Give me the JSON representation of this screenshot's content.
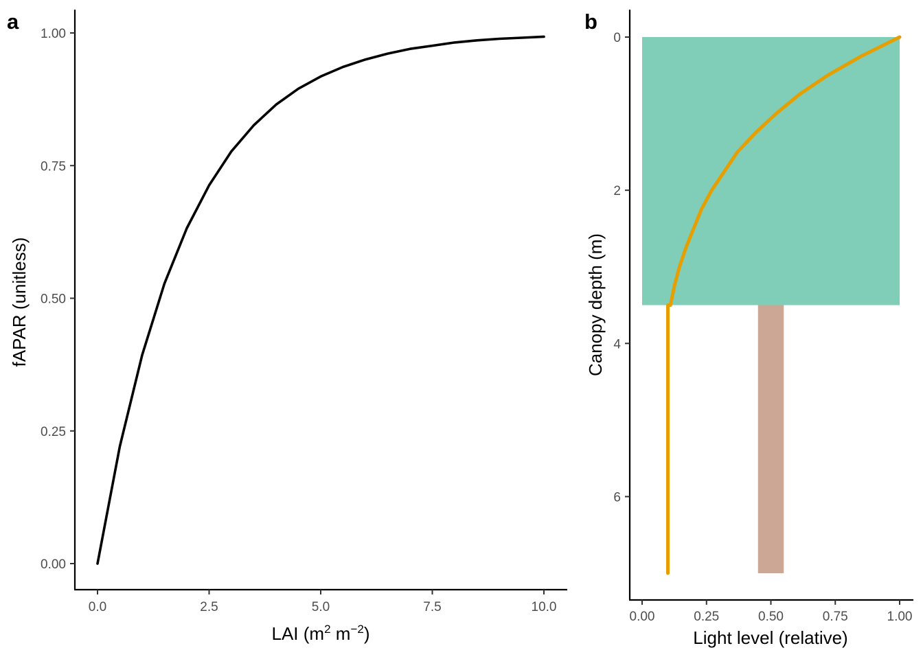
{
  "colors": {
    "curve_a": "#000000",
    "light_curve": "#E69F00",
    "crown": "#80CEB7",
    "trunk": "#CDA795",
    "axis": "#000000",
    "tick_text": "#4d4d4d"
  },
  "chart_data": [
    {
      "panel": "a",
      "type": "line",
      "xlabel": "LAI (m² m⁻²)",
      "xlabel_parts": {
        "base": "LAI (m",
        "sup1": "2",
        "mid": " m",
        "sup2": "−2",
        "end": ")"
      },
      "ylabel": "fAPAR (unitless)",
      "xlim": [
        0,
        10
      ],
      "ylim": [
        0,
        1
      ],
      "x_ticks": [
        0,
        2.5,
        5,
        7.5,
        10
      ],
      "x_tick_labels": [
        "0.0",
        "2.5",
        "5.0",
        "7.5",
        "10.0"
      ],
      "y_ticks": [
        0,
        0.25,
        0.5,
        0.75,
        1
      ],
      "y_tick_labels": [
        "0.00",
        "0.25",
        "0.50",
        "0.75",
        "1.00"
      ],
      "grid": false,
      "series": [
        {
          "x": [
            0,
            0.5,
            1,
            1.5,
            2,
            2.5,
            3,
            3.5,
            4,
            4.5,
            5,
            5.5,
            6,
            6.5,
            7,
            7.5,
            8,
            8.5,
            9,
            9.5,
            10
          ],
          "y": [
            0,
            0.221,
            0.393,
            0.528,
            0.632,
            0.713,
            0.777,
            0.826,
            0.865,
            0.895,
            0.918,
            0.936,
            0.95,
            0.961,
            0.97,
            0.976,
            0.982,
            0.986,
            0.989,
            0.991,
            0.993
          ]
        }
      ]
    },
    {
      "panel": "b",
      "type": "line",
      "xlabel": "Light level (relative)",
      "ylabel": "Canopy depth (m)",
      "xlim": [
        0,
        1
      ],
      "ylim": [
        7,
        0
      ],
      "y_reversed": true,
      "x_ticks": [
        0,
        0.25,
        0.5,
        0.75,
        1
      ],
      "x_tick_labels": [
        "0.00",
        "0.25",
        "0.50",
        "0.75",
        "1.00"
      ],
      "y_ticks": [
        0,
        2,
        4,
        6
      ],
      "y_tick_labels": [
        "0",
        "2",
        "4",
        "6"
      ],
      "grid": false,
      "crown_rect": {
        "x": [
          0,
          1
        ],
        "depth": [
          0,
          3.5
        ]
      },
      "trunk_rect": {
        "x": [
          0.45,
          0.55
        ],
        "depth": [
          3.5,
          7
        ]
      },
      "series": [
        {
          "x": [
            1,
            0.85,
            0.72,
            0.61,
            0.52,
            0.44,
            0.37,
            0.32,
            0.27,
            0.23,
            0.2,
            0.17,
            0.145,
            0.125,
            0.11,
            0.1,
            0.1,
            0.1,
            0.1
          ],
          "y": [
            0,
            0.25,
            0.5,
            0.75,
            1,
            1.25,
            1.5,
            1.75,
            2,
            2.25,
            2.5,
            2.75,
            3,
            3.25,
            3.5,
            3.5,
            4.5,
            6,
            7
          ]
        }
      ]
    }
  ],
  "panels": {
    "a_tag": "a",
    "b_tag": "b"
  }
}
